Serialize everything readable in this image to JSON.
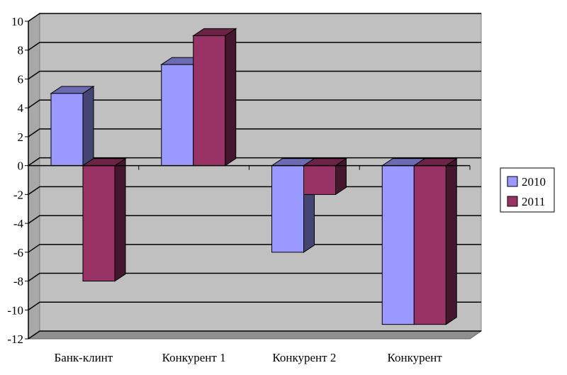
{
  "chart_data": {
    "type": "bar",
    "title": "",
    "xlabel": "",
    "ylabel": "",
    "categories": [
      "Банк-клинт",
      "Конкурент 1",
      "Конкурент 2",
      "Конкурент"
    ],
    "series": [
      {
        "name": "2010",
        "values": [
          5,
          7,
          -6,
          -11
        ],
        "color": "#9999ff"
      },
      {
        "name": "2011",
        "values": [
          -8,
          9,
          -2,
          -11
        ],
        "color": "#993366"
      }
    ],
    "ylim": [
      -12,
      10
    ],
    "yticks": [
      "10",
      "8",
      "6",
      "4",
      "2",
      "0",
      "-2",
      "-4",
      "-6",
      "-8",
      "-10",
      "-12"
    ],
    "grid": true,
    "legend_position": "right",
    "style": "3d-clustered-column",
    "wall_color": "#c0c0c0"
  }
}
